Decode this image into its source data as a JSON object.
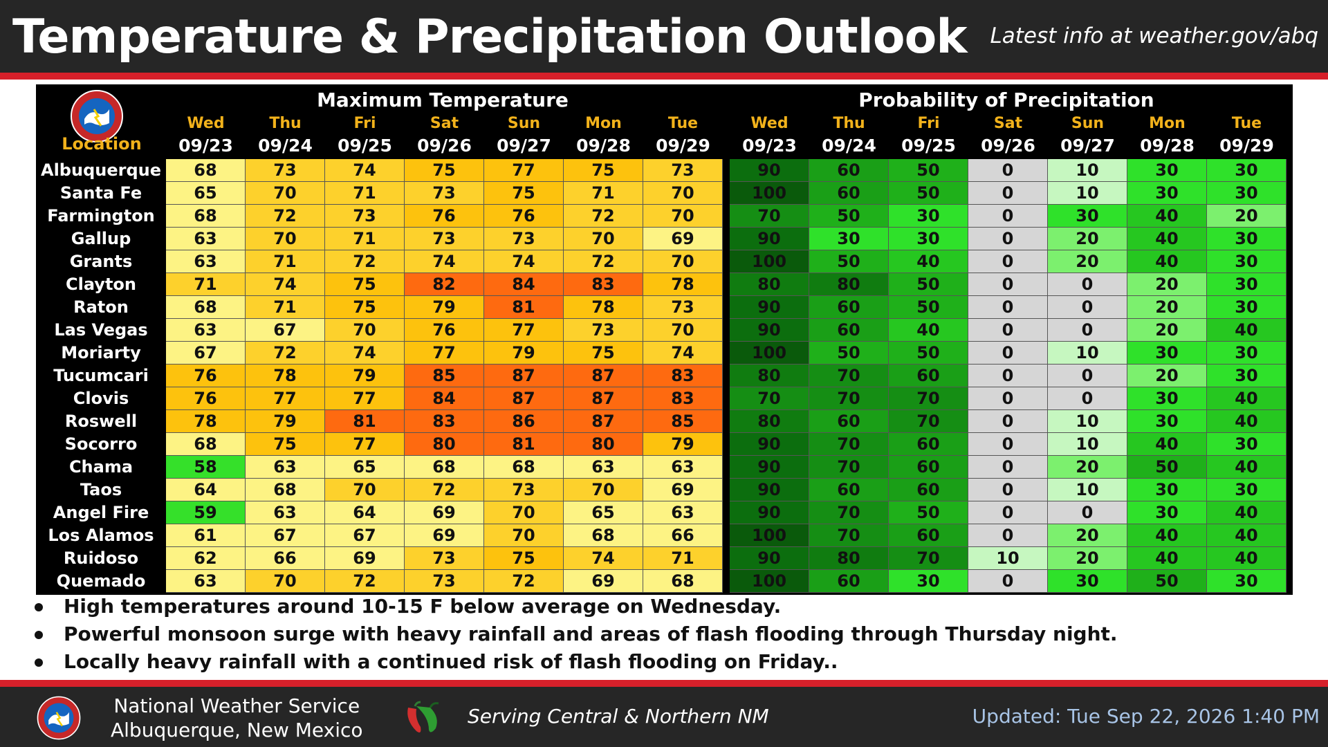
{
  "header": {
    "title": "Temperature & Precipitation Outlook",
    "url": "Latest info at weather.gov/abq"
  },
  "table": {
    "location_header": "Location",
    "max_temp_title": "Maximum Temperature",
    "pop_title": "Probability of Precipitation",
    "days": [
      "Wed",
      "Thu",
      "Fri",
      "Sat",
      "Sun",
      "Mon",
      "Tue"
    ],
    "dates": [
      "09/23",
      "09/24",
      "09/25",
      "09/26",
      "09/27",
      "09/28",
      "09/29"
    ],
    "rows": [
      {
        "location": "Albuquerque",
        "temps": [
          68,
          73,
          74,
          75,
          77,
          75,
          73
        ],
        "pop": [
          90,
          60,
          50,
          0,
          10,
          30,
          30
        ]
      },
      {
        "location": "Santa Fe",
        "temps": [
          65,
          70,
          71,
          73,
          75,
          71,
          70
        ],
        "pop": [
          100,
          60,
          50,
          0,
          10,
          30,
          30
        ]
      },
      {
        "location": "Farmington",
        "temps": [
          68,
          72,
          73,
          76,
          76,
          72,
          70
        ],
        "pop": [
          70,
          50,
          30,
          0,
          30,
          40,
          20
        ]
      },
      {
        "location": "Gallup",
        "temps": [
          63,
          70,
          71,
          73,
          73,
          70,
          69
        ],
        "pop": [
          90,
          30,
          30,
          0,
          20,
          40,
          30
        ]
      },
      {
        "location": "Grants",
        "temps": [
          63,
          71,
          72,
          74,
          74,
          72,
          70
        ],
        "pop": [
          100,
          50,
          40,
          0,
          20,
          40,
          30
        ]
      },
      {
        "location": "Clayton",
        "temps": [
          71,
          74,
          75,
          82,
          84,
          83,
          78
        ],
        "pop": [
          80,
          80,
          50,
          0,
          0,
          20,
          30
        ]
      },
      {
        "location": "Raton",
        "temps": [
          68,
          71,
          75,
          79,
          81,
          78,
          73
        ],
        "pop": [
          90,
          60,
          50,
          0,
          0,
          20,
          30
        ]
      },
      {
        "location": "Las Vegas",
        "temps": [
          63,
          67,
          70,
          76,
          77,
          73,
          70
        ],
        "pop": [
          90,
          60,
          40,
          0,
          0,
          20,
          40
        ]
      },
      {
        "location": "Moriarty",
        "temps": [
          67,
          72,
          74,
          77,
          79,
          75,
          74
        ],
        "pop": [
          100,
          50,
          50,
          0,
          10,
          30,
          30
        ]
      },
      {
        "location": "Tucumcari",
        "temps": [
          76,
          78,
          79,
          85,
          87,
          87,
          83
        ],
        "pop": [
          80,
          70,
          60,
          0,
          0,
          20,
          30
        ]
      },
      {
        "location": "Clovis",
        "temps": [
          76,
          77,
          77,
          84,
          87,
          87,
          83
        ],
        "pop": [
          70,
          70,
          70,
          0,
          0,
          30,
          40
        ]
      },
      {
        "location": "Roswell",
        "temps": [
          78,
          79,
          81,
          83,
          86,
          87,
          85
        ],
        "pop": [
          80,
          60,
          70,
          0,
          10,
          30,
          40
        ]
      },
      {
        "location": "Socorro",
        "temps": [
          68,
          75,
          77,
          80,
          81,
          80,
          79
        ],
        "pop": [
          90,
          70,
          60,
          0,
          10,
          40,
          30
        ]
      },
      {
        "location": "Chama",
        "temps": [
          58,
          63,
          65,
          68,
          68,
          63,
          63
        ],
        "pop": [
          90,
          70,
          60,
          0,
          20,
          50,
          40
        ]
      },
      {
        "location": "Taos",
        "temps": [
          64,
          68,
          70,
          72,
          73,
          70,
          69
        ],
        "pop": [
          90,
          60,
          60,
          0,
          10,
          30,
          30
        ]
      },
      {
        "location": "Angel Fire",
        "temps": [
          59,
          63,
          64,
          69,
          70,
          65,
          63
        ],
        "pop": [
          90,
          70,
          50,
          0,
          0,
          30,
          40
        ]
      },
      {
        "location": "Los Alamos",
        "temps": [
          61,
          67,
          67,
          69,
          70,
          68,
          66
        ],
        "pop": [
          100,
          70,
          60,
          0,
          20,
          40,
          40
        ]
      },
      {
        "location": "Ruidoso",
        "temps": [
          62,
          66,
          69,
          73,
          75,
          74,
          71
        ],
        "pop": [
          90,
          80,
          70,
          10,
          20,
          40,
          40
        ]
      },
      {
        "location": "Quemado",
        "temps": [
          63,
          70,
          72,
          73,
          72,
          69,
          68
        ],
        "pop": [
          100,
          60,
          30,
          0,
          30,
          50,
          30
        ]
      }
    ]
  },
  "bullets": [
    "High temperatures around 10-15 F below average on Wednesday.",
    "Powerful monsoon surge with heavy rainfall and areas of flash flooding through Thursday night.",
    "Locally heavy rainfall with a continued risk of flash flooding on Friday.."
  ],
  "footer": {
    "org_line1": "National Weather Service",
    "org_line2": "Albuquerque, New Mexico",
    "serving": "Serving Central & Northern NM",
    "updated": "Updated: Tue Sep 22, 2026 1:40 PM"
  },
  "logo_text": "NATIONAL WEATHER SERVICE",
  "colors": {
    "header_bg": "#262626",
    "accent_red": "#d6202a",
    "day_label": "#f2b21b",
    "temp_cool": "#35e02a",
    "temp_60s": "#fdf384",
    "temp_70_74": "#fdd12c",
    "temp_75_79": "#fdc20d",
    "temp_80s": "#fe6a10",
    "pop_0": "#d6d6d6",
    "pop_low": "#c6f7c0",
    "pop_20_30": "#2fe12a",
    "pop_high": "#096a0c"
  }
}
